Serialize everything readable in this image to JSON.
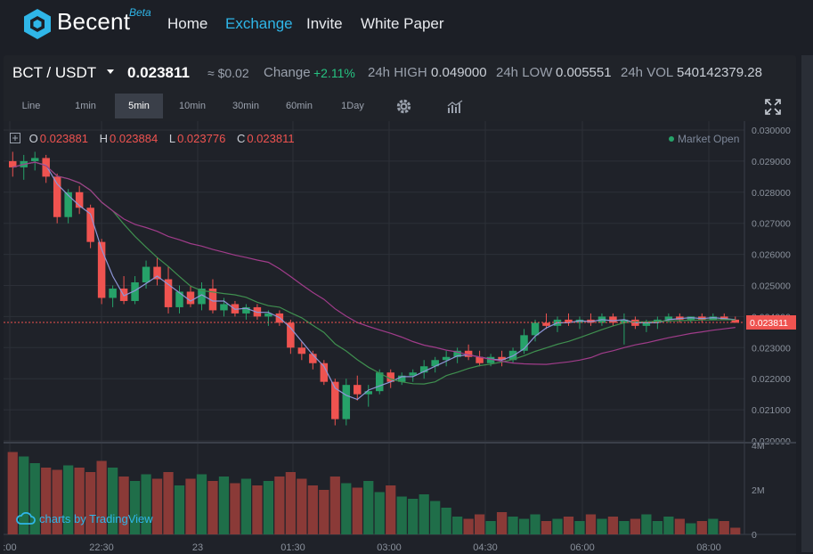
{
  "nav": {
    "brand": "Becent",
    "beta": "Beta",
    "links": [
      {
        "label": "Home",
        "active": false
      },
      {
        "label": "Exchange",
        "active": true
      },
      {
        "label": "Invite",
        "active": false
      },
      {
        "label": "White Paper",
        "active": false
      }
    ]
  },
  "ticker": {
    "pair": "BCT / USDT",
    "last": "0.023811",
    "usd": "≈ $0.02",
    "change_label": "Change",
    "change_value": "+2.11%",
    "high_label": "24h HIGH",
    "high_value": "0.049000",
    "low_label": "24h LOW",
    "low_value": "0.005551",
    "vol_label": "24h VOL",
    "vol_value": "540142379.28"
  },
  "toolbar": {
    "intervals": [
      "Line",
      "1min",
      "5min",
      "10min",
      "30min",
      "60min",
      "1Day"
    ],
    "active_interval": "5min"
  },
  "legend": {
    "o_label": "O",
    "o_value": "0.023881",
    "h_label": "H",
    "h_value": "0.023884",
    "l_label": "L",
    "l_value": "0.023776",
    "c_label": "C",
    "c_value": "0.023811",
    "market_status": "Market Open"
  },
  "watermark": "charts by TradingView",
  "colors": {
    "up": "#26a269",
    "down": "#ef5350",
    "ma_fast": "#8e96d8",
    "ma_mid": "#3f8f4f",
    "ma_slow": "#a03c8a",
    "accent": "#2fb6e8"
  },
  "chart_data": {
    "type": "candlestick",
    "price_axis": {
      "ticks": [
        "0.030000",
        "0.029000",
        "0.028000",
        "0.027000",
        "0.026000",
        "0.025000",
        "0.024000",
        "0.023000",
        "0.022000",
        "0.021000",
        "0.020000"
      ],
      "ylim": [
        0.02,
        0.03
      ],
      "last_price_label": "0.023811"
    },
    "volume_axis": {
      "ticks": [
        "4M",
        "2M",
        "0"
      ],
      "ylim": [
        0,
        4
      ]
    },
    "time_axis": {
      "ticks": [
        ":00",
        "22:30",
        "23",
        "01:30",
        "03:00",
        "04:30",
        "06:00",
        "08:00"
      ]
    },
    "candles": [
      [
        0.029,
        0.0293,
        0.0285,
        0.0288
      ],
      [
        0.0288,
        0.0292,
        0.0284,
        0.029
      ],
      [
        0.029,
        0.0293,
        0.0287,
        0.0291
      ],
      [
        0.0291,
        0.0292,
        0.0283,
        0.0285
      ],
      [
        0.0285,
        0.0286,
        0.027,
        0.0272
      ],
      [
        0.0272,
        0.0281,
        0.027,
        0.028
      ],
      [
        0.028,
        0.0282,
        0.0273,
        0.0275
      ],
      [
        0.0275,
        0.0276,
        0.0262,
        0.0264
      ],
      [
        0.0264,
        0.0265,
        0.0244,
        0.0246
      ],
      [
        0.0246,
        0.025,
        0.0243,
        0.0249
      ],
      [
        0.0249,
        0.0253,
        0.0244,
        0.0245
      ],
      [
        0.0245,
        0.0253,
        0.0244,
        0.0251
      ],
      [
        0.0251,
        0.0258,
        0.0249,
        0.0256
      ],
      [
        0.0256,
        0.0259,
        0.025,
        0.0252
      ],
      [
        0.0252,
        0.0256,
        0.0241,
        0.0243
      ],
      [
        0.0243,
        0.025,
        0.0241,
        0.0248
      ],
      [
        0.0248,
        0.025,
        0.0243,
        0.0244
      ],
      [
        0.0244,
        0.0251,
        0.0242,
        0.0249
      ],
      [
        0.0249,
        0.0252,
        0.0241,
        0.0242
      ],
      [
        0.0242,
        0.0246,
        0.024,
        0.0244
      ],
      [
        0.0244,
        0.0245,
        0.024,
        0.0241
      ],
      [
        0.0241,
        0.0244,
        0.0239,
        0.0243
      ],
      [
        0.0243,
        0.0244,
        0.0239,
        0.024
      ],
      [
        0.024,
        0.0242,
        0.0237,
        0.0241
      ],
      [
        0.0241,
        0.0242,
        0.0237,
        0.0238
      ],
      [
        0.0238,
        0.0239,
        0.0228,
        0.023
      ],
      [
        0.023,
        0.0232,
        0.0226,
        0.0228
      ],
      [
        0.0228,
        0.0229,
        0.0223,
        0.0225
      ],
      [
        0.0225,
        0.0226,
        0.0218,
        0.0219
      ],
      [
        0.0219,
        0.022,
        0.0205,
        0.0207
      ],
      [
        0.0207,
        0.022,
        0.0205,
        0.0218
      ],
      [
        0.0218,
        0.0221,
        0.0213,
        0.0215
      ],
      [
        0.0215,
        0.0218,
        0.0211,
        0.0216
      ],
      [
        0.0216,
        0.0223,
        0.0215,
        0.0222
      ],
      [
        0.0222,
        0.0223,
        0.0217,
        0.0219
      ],
      [
        0.0219,
        0.0222,
        0.0218,
        0.0221
      ],
      [
        0.0221,
        0.0223,
        0.0219,
        0.0222
      ],
      [
        0.0222,
        0.0226,
        0.022,
        0.0224
      ],
      [
        0.0224,
        0.0227,
        0.0222,
        0.0226
      ],
      [
        0.0226,
        0.0229,
        0.0224,
        0.0227
      ],
      [
        0.0227,
        0.023,
        0.0225,
        0.0229
      ],
      [
        0.0229,
        0.0231,
        0.0226,
        0.0227
      ],
      [
        0.0227,
        0.0229,
        0.0224,
        0.0225
      ],
      [
        0.0225,
        0.0228,
        0.0224,
        0.0227
      ],
      [
        0.0227,
        0.0229,
        0.0224,
        0.0226
      ],
      [
        0.0226,
        0.023,
        0.0225,
        0.0229
      ],
      [
        0.0229,
        0.0236,
        0.0228,
        0.0234
      ],
      [
        0.0234,
        0.0239,
        0.0232,
        0.0238
      ],
      [
        0.0238,
        0.0241,
        0.0236,
        0.0237
      ],
      [
        0.0237,
        0.024,
        0.0235,
        0.0239
      ],
      [
        0.0239,
        0.0241,
        0.0237,
        0.0238
      ],
      [
        0.0238,
        0.024,
        0.0236,
        0.0239
      ],
      [
        0.0239,
        0.0241,
        0.0237,
        0.0238
      ],
      [
        0.0238,
        0.0241,
        0.0237,
        0.024
      ],
      [
        0.024,
        0.0241,
        0.0237,
        0.0238
      ],
      [
        0.0238,
        0.0241,
        0.0231,
        0.0239
      ],
      [
        0.0239,
        0.024,
        0.0236,
        0.0237
      ],
      [
        0.0237,
        0.0239,
        0.0235,
        0.0238
      ],
      [
        0.0238,
        0.024,
        0.0236,
        0.0239
      ],
      [
        0.0239,
        0.0241,
        0.0238,
        0.024
      ],
      [
        0.024,
        0.0241,
        0.0238,
        0.0239
      ],
      [
        0.0239,
        0.024,
        0.0238,
        0.024
      ],
      [
        0.024,
        0.0241,
        0.0238,
        0.0239
      ],
      [
        0.0239,
        0.0241,
        0.0239,
        0.024
      ],
      [
        0.024,
        0.0241,
        0.0239,
        0.0239
      ],
      [
        0.0239,
        0.024,
        0.0238,
        0.0238
      ]
    ],
    "volumes": [
      3.7,
      3.5,
      3.2,
      3.0,
      2.9,
      3.1,
      3.0,
      2.8,
      3.3,
      3.0,
      2.6,
      2.4,
      2.7,
      2.5,
      2.8,
      2.2,
      2.5,
      2.7,
      2.4,
      2.6,
      2.3,
      2.5,
      2.2,
      2.4,
      2.6,
      2.8,
      2.5,
      2.2,
      2.0,
      2.6,
      2.3,
      2.1,
      2.4,
      1.9,
      2.2,
      1.7,
      1.6,
      1.8,
      1.5,
      1.2,
      0.8,
      0.7,
      0.9,
      0.6,
      1.0,
      0.8,
      0.7,
      0.9,
      0.6,
      0.7,
      0.8,
      0.6,
      0.9,
      0.7,
      0.8,
      0.6,
      0.7,
      0.9,
      0.6,
      0.8,
      0.7,
      0.5,
      0.6,
      0.7,
      0.6,
      0.3
    ]
  }
}
